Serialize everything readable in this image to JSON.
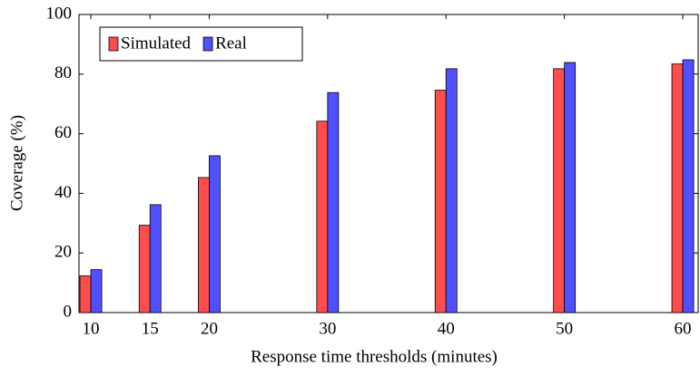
{
  "chart_data": {
    "type": "bar",
    "x_label": "Response time thresholds (minutes)",
    "y_label": "Coverage (%)",
    "x": [
      10,
      15,
      20,
      30,
      40,
      50,
      60
    ],
    "series": [
      {
        "name": "Simulated",
        "color": "#ff4d4d",
        "values": [
          12.3,
          29.3,
          45.3,
          64.2,
          74.6,
          81.8,
          83.4
        ]
      },
      {
        "name": "Real",
        "color": "#5050ff",
        "values": [
          14.4,
          36.2,
          52.6,
          73.8,
          81.8,
          83.9,
          84.8
        ]
      }
    ],
    "xlim": [
      9,
      61.3
    ],
    "xticks": [
      10,
      15,
      20,
      30,
      40,
      50,
      60
    ],
    "ylim": [
      0,
      100
    ],
    "yticks": [
      0,
      20,
      40,
      60,
      80,
      100
    ],
    "legend": "upper-left"
  }
}
